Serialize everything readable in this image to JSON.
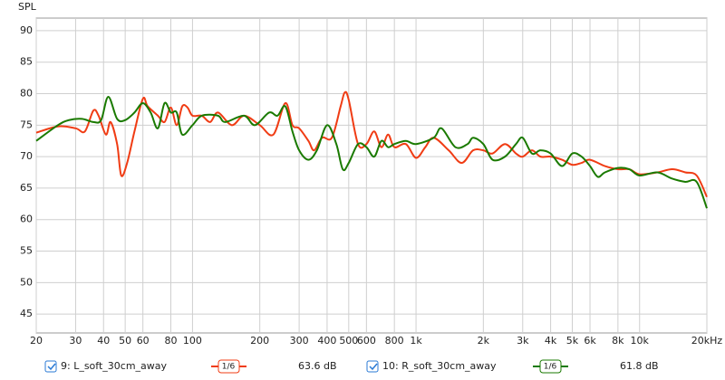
{
  "chart_data": {
    "type": "line",
    "y_label": "SPL",
    "log_x": true,
    "grid": true,
    "xlim": [
      20,
      20000
    ],
    "ylim": [
      42,
      92
    ],
    "xticks": [
      20,
      30,
      40,
      50,
      60,
      80,
      100,
      200,
      300,
      400,
      500,
      600,
      800,
      {
        "value": 1000,
        "label": "1k"
      },
      {
        "value": 2000,
        "label": "2k"
      },
      {
        "value": 3000,
        "label": "3k"
      },
      {
        "value": 4000,
        "label": "4k"
      },
      {
        "value": 5000,
        "label": "5k"
      },
      {
        "value": 6000,
        "label": "6k"
      },
      {
        "value": 8000,
        "label": "8k"
      },
      {
        "value": 10000,
        "label": "10k"
      },
      {
        "value": 20000,
        "label": "20kHz"
      }
    ],
    "yticks": [
      45,
      50,
      55,
      60,
      65,
      70,
      75,
      80,
      85,
      90
    ],
    "series": [
      {
        "name": "9: L_soft_30cm_away",
        "color": "#f03c14",
        "smoothing": "1/6",
        "readout": "63.6 dB",
        "x": [
          20,
          25,
          30,
          33,
          36,
          38,
          41,
          43,
          46,
          48,
          51,
          55,
          60,
          63,
          70,
          75,
          80,
          85,
          90,
          95,
          100,
          110,
          120,
          130,
          150,
          170,
          200,
          230,
          260,
          280,
          300,
          330,
          350,
          380,
          420,
          460,
          480,
          500,
          550,
          600,
          650,
          700,
          750,
          800,
          900,
          1000,
          1100,
          1200,
          1400,
          1600,
          1800,
          2000,
          2200,
          2500,
          2800,
          3000,
          3300,
          3600,
          4000,
          4500,
          5000,
          5500,
          6000,
          7000,
          8000,
          9000,
          10000,
          12000,
          14000,
          16000,
          18000,
          20000
        ],
        "values": [
          73.8,
          74.8,
          74.5,
          74,
          77.3,
          76.5,
          73.5,
          75.5,
          72,
          67,
          69,
          74,
          79.2,
          78,
          76.5,
          75.5,
          77.8,
          75,
          78,
          77.8,
          76.5,
          76.5,
          75.5,
          77,
          75,
          76.5,
          75,
          73.5,
          78.5,
          75,
          74.5,
          72.5,
          71,
          73,
          73,
          78,
          80.2,
          79,
          72,
          72,
          74,
          71.5,
          73.5,
          71.5,
          72,
          69.8,
          71.5,
          73,
          71,
          69,
          71,
          71,
          70.5,
          72,
          70.5,
          70,
          71,
          70,
          70,
          69.5,
          68.7,
          69,
          69.5,
          68.5,
          68,
          68,
          67.2,
          67.5,
          68,
          67.5,
          67,
          63.6
        ]
      },
      {
        "name": "10: R_soft_30cm_away",
        "color": "#1a7a00",
        "smoothing": "1/6",
        "readout": "61.8 dB",
        "x": [
          20,
          25,
          28,
          32,
          36,
          39,
          42,
          46,
          50,
          55,
          60,
          65,
          70,
          75,
          80,
          85,
          90,
          100,
          110,
          130,
          140,
          170,
          190,
          220,
          240,
          260,
          280,
          300,
          330,
          360,
          400,
          440,
          470,
          500,
          550,
          600,
          650,
          700,
          750,
          800,
          900,
          1000,
          1200,
          1300,
          1500,
          1700,
          1800,
          2000,
          2200,
          2500,
          2800,
          3000,
          3300,
          3600,
          4000,
          4500,
          5000,
          5500,
          6000,
          6500,
          7000,
          8000,
          9000,
          10000,
          12000,
          14000,
          16000,
          18000,
          20000
        ],
        "values": [
          72.5,
          75,
          75.8,
          76,
          75.5,
          75.8,
          79.5,
          76,
          75.8,
          77,
          78.5,
          77,
          74.5,
          78.5,
          77,
          77,
          73.5,
          75,
          76.5,
          76.5,
          75.5,
          76.5,
          75,
          77,
          76.5,
          78,
          74,
          71,
          69.5,
          71,
          75,
          72,
          68,
          69,
          72,
          71.5,
          70,
          72.5,
          71.5,
          72,
          72.5,
          72,
          73,
          74.5,
          71.5,
          72,
          73,
          72,
          69.5,
          70,
          72,
          73,
          70.5,
          71,
          70.5,
          68.5,
          70.5,
          70,
          68.5,
          66.8,
          67.5,
          68.2,
          68,
          67,
          67.5,
          66.5,
          66,
          66,
          61.8
        ]
      }
    ]
  }
}
